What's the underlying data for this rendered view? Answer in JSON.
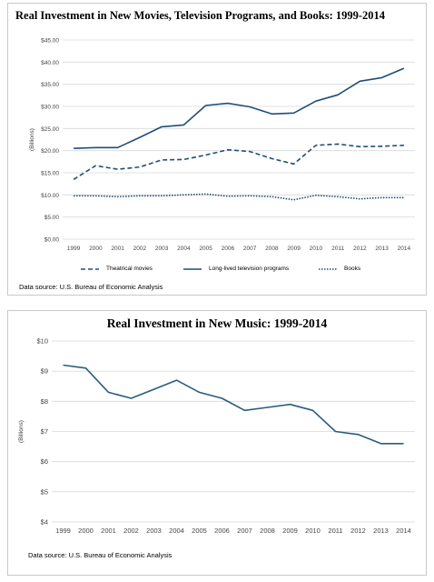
{
  "chart_data": [
    {
      "type": "line",
      "title": "Real Investment in New Movies, Television Programs, and Books: 1999-2014",
      "ylabel": "(Billions)",
      "xlabel": "",
      "x": [
        "1999",
        "2000",
        "2001",
        "2002",
        "2003",
        "2004",
        "2005",
        "2006",
        "2007",
        "2008",
        "2009",
        "2010",
        "2011",
        "2012",
        "2013",
        "2014"
      ],
      "yticks": [
        "$0.00",
        "$5.00",
        "$10.00",
        "$15.00",
        "$20.00",
        "$25.00",
        "$30.00",
        "$35.00",
        "$40.00",
        "$45.00"
      ],
      "ylim": [
        0,
        45
      ],
      "grid": true,
      "legend_position": "bottom",
      "series": [
        {
          "name": "Theatrical movies",
          "style": "dashed",
          "values": [
            13.5,
            16.6,
            15.8,
            16.3,
            17.9,
            18.0,
            19.0,
            20.2,
            19.8,
            18.2,
            17.0,
            21.2,
            21.5,
            20.9,
            21.0,
            21.2
          ]
        },
        {
          "name": "Long-lived television programs",
          "style": "solid",
          "values": [
            20.5,
            20.7,
            20.7,
            23.0,
            25.4,
            25.8,
            30.2,
            30.7,
            29.9,
            28.3,
            28.5,
            31.2,
            32.6,
            35.7,
            36.5,
            38.6
          ]
        },
        {
          "name": "Books",
          "style": "dotted",
          "values": [
            9.8,
            9.8,
            9.6,
            9.8,
            9.8,
            10.0,
            10.2,
            9.7,
            9.8,
            9.6,
            8.9,
            9.9,
            9.6,
            9.1,
            9.4,
            9.4
          ]
        }
      ],
      "source": "Data source: U.S. Bureau of Economic Analysis",
      "color": "#1f4e79"
    },
    {
      "type": "line",
      "title": "Real Investment in New Music: 1999-2014",
      "ylabel": "(Billions)",
      "xlabel": "",
      "x": [
        "1999",
        "2000",
        "2001",
        "2002",
        "2003",
        "2004",
        "2005",
        "2006",
        "2007",
        "2008",
        "2009",
        "2010",
        "2011",
        "2012",
        "2013",
        "2014"
      ],
      "yticks": [
        "$4",
        "$5",
        "$6",
        "$7",
        "$8",
        "$9",
        "$10"
      ],
      "ylim": [
        4,
        10
      ],
      "grid": true,
      "series": [
        {
          "values": [
            9.2,
            9.1,
            8.3,
            8.1,
            8.4,
            8.7,
            8.3,
            8.1,
            7.7,
            7.8,
            7.9,
            7.7,
            7.0,
            6.9,
            6.6,
            6.6
          ]
        }
      ],
      "source": "Data source: U.S. Bureau of Economic Analysis",
      "color": "#2a5d7f"
    }
  ]
}
